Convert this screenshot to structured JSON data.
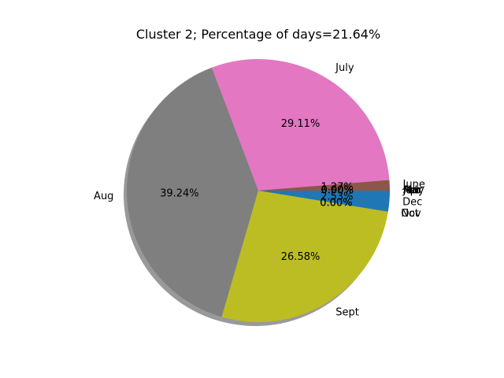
{
  "chart_data": {
    "type": "pie",
    "title": "Cluster 2; Percentage of days=21.64%",
    "shadow": true,
    "start_angle_deg": 0,
    "direction": "counterclockwise",
    "slices": [
      {
        "label": "Jan",
        "value": 0.0,
        "pct_text": "0.00%",
        "color": "#1f77b4"
      },
      {
        "label": "Feb",
        "value": 0.0,
        "pct_text": "0.00%",
        "color": "#ff7f0e"
      },
      {
        "label": "Mar",
        "value": 0.0,
        "pct_text": "0.00%",
        "color": "#2ca02c"
      },
      {
        "label": "May",
        "value": 0.0,
        "pct_text": "0.00%",
        "color": "#d62728"
      },
      {
        "label": "Apr",
        "value": 0.0,
        "pct_text": "0.00%",
        "color": "#9467bd"
      },
      {
        "label": "June",
        "value": 1.27,
        "pct_text": "1.27%",
        "color": "#8c564b"
      },
      {
        "label": "July",
        "value": 29.11,
        "pct_text": "29.11%",
        "color": "#e377c2"
      },
      {
        "label": "Aug",
        "value": 39.24,
        "pct_text": "39.24%",
        "color": "#7f7f7f"
      },
      {
        "label": "Sept",
        "value": 26.58,
        "pct_text": "26.58%",
        "color": "#bcbd22"
      },
      {
        "label": "Oct",
        "value": 0.0,
        "pct_text": "0.00%",
        "color": "#17becf"
      },
      {
        "label": "Nov",
        "value": 0.0,
        "pct_text": "0.00%",
        "color": "#1f77b4"
      },
      {
        "label": "Dec",
        "value": 2.53,
        "pct_text": "2.53%",
        "color": "#1f77b4"
      }
    ]
  }
}
